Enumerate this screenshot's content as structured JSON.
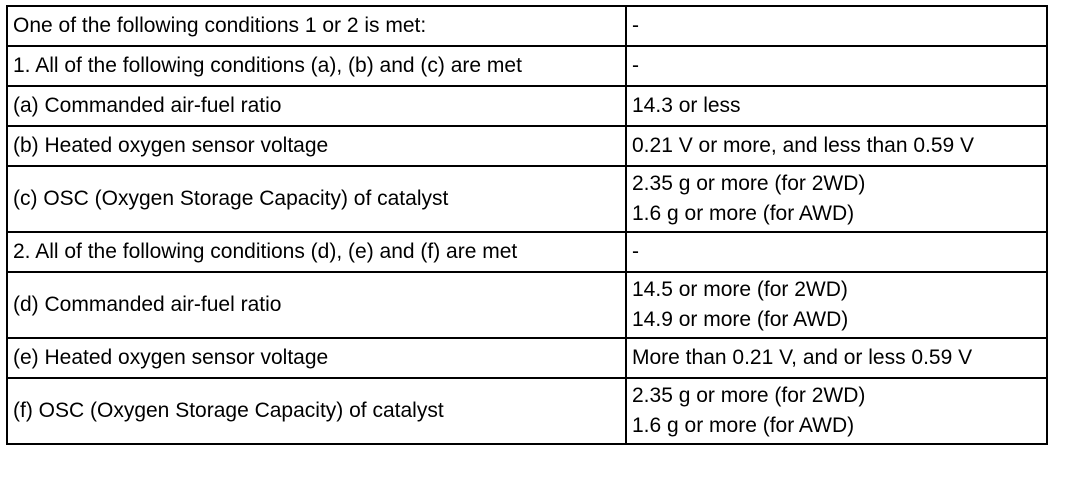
{
  "rows": [
    {
      "condition": "One of the following conditions 1 or 2 is met:",
      "value": [
        "-"
      ]
    },
    {
      "condition": "1. All of the following conditions (a), (b) and (c) are met",
      "value": [
        "-"
      ]
    },
    {
      "condition": "(a) Commanded air-fuel ratio",
      "value": [
        "14.3 or less"
      ]
    },
    {
      "condition": "(b) Heated oxygen sensor voltage",
      "value": [
        "0.21 V or more, and less than 0.59 V"
      ]
    },
    {
      "condition": "(c) OSC (Oxygen Storage Capacity) of catalyst",
      "value": [
        "2.35 g or more (for 2WD)",
        "1.6 g or more (for AWD)"
      ]
    },
    {
      "condition": "2. All of the following conditions (d), (e) and (f) are met",
      "value": [
        "-"
      ]
    },
    {
      "condition": "(d) Commanded air-fuel ratio",
      "value": [
        "14.5 or more (for 2WD)",
        "14.9 or more (for AWD)"
      ]
    },
    {
      "condition": "(e) Heated oxygen sensor voltage",
      "value": [
        "More than 0.21 V, and or less 0.59 V"
      ]
    },
    {
      "condition": "(f) OSC (Oxygen Storage Capacity) of catalyst",
      "value": [
        "2.35 g or more (for 2WD)",
        "1.6 g or more (for AWD)"
      ]
    }
  ]
}
